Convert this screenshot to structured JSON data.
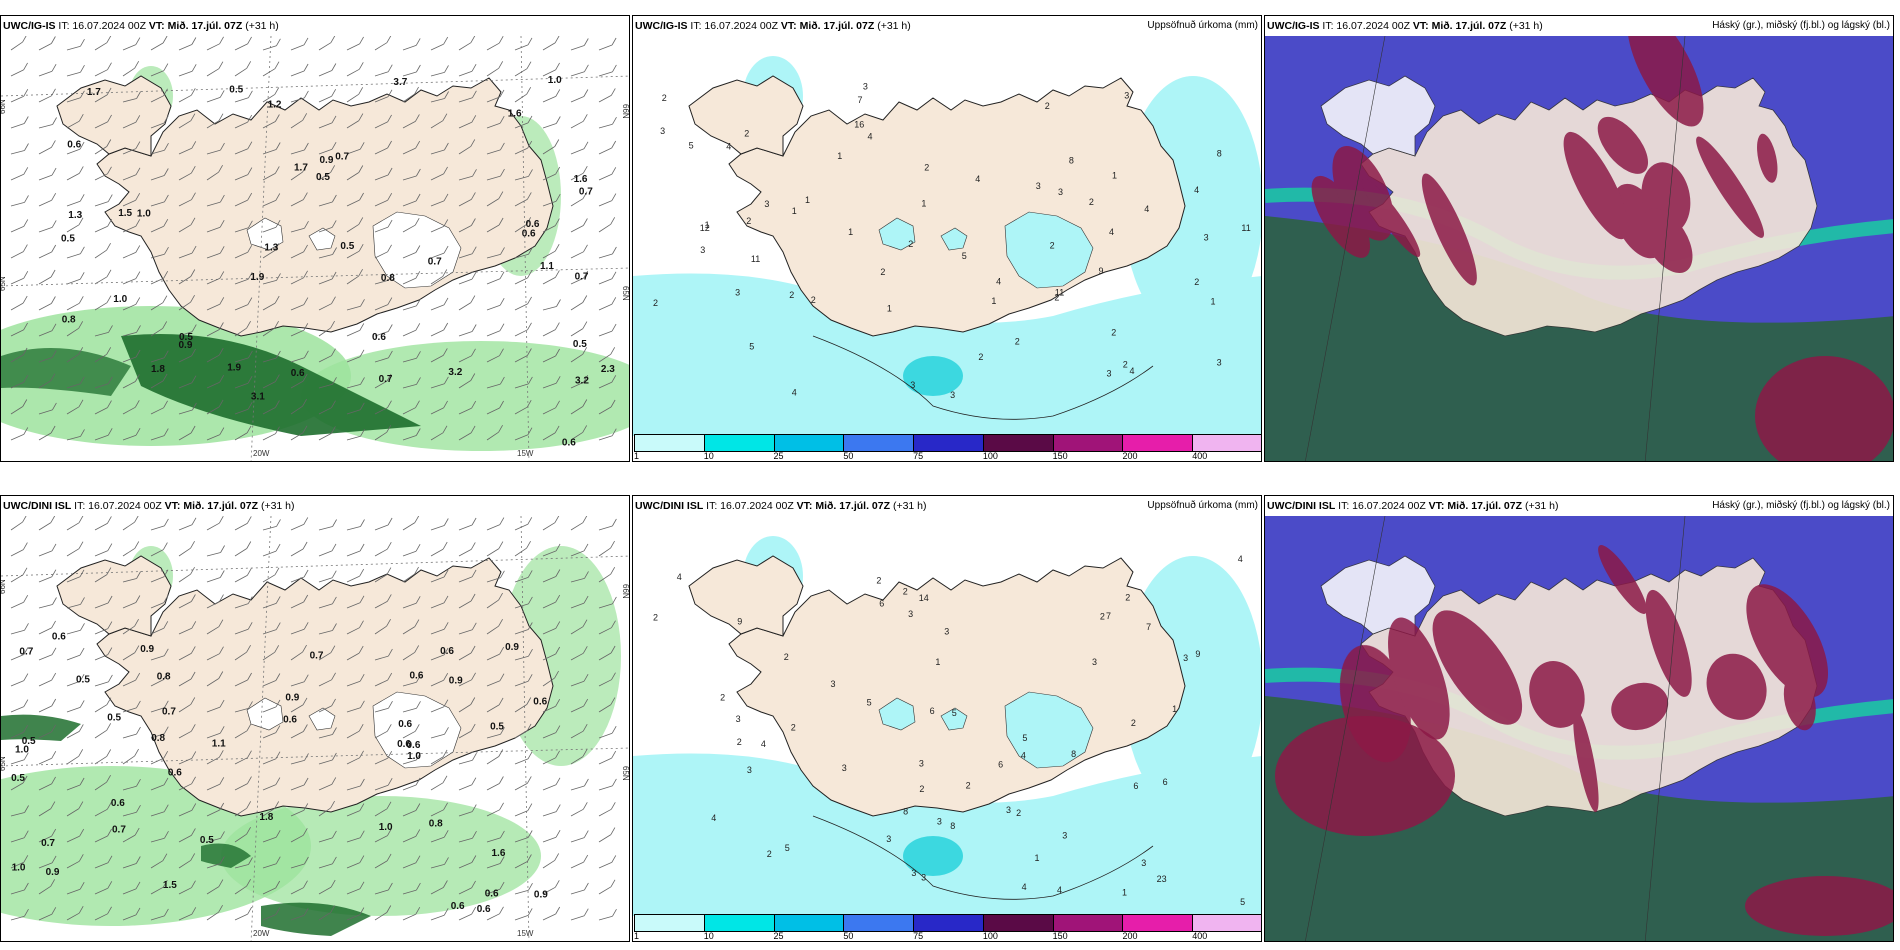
{
  "panels": [
    {
      "model": "UWC/IG-IS",
      "it": "IT: 16.07.2024 00Z",
      "vt_label": "VT:",
      "vt": "Mið. 17.júl. 07Z",
      "lead": "(+31 h)",
      "right": ""
    },
    {
      "model": "UWC/IG-IS",
      "it": "IT: 16.07.2024 00Z",
      "vt_label": "VT:",
      "vt": "Mið. 17.júl. 07Z",
      "lead": "(+31 h)",
      "right": "Uppsöfnuð úrkoma (mm)"
    },
    {
      "model": "UWC/IG-IS",
      "it": "IT: 16.07.2024 00Z",
      "vt_label": "VT:",
      "vt": "Mið. 17.júl. 07Z",
      "lead": "(+31 h)",
      "right": "Háský (gr.), miðský (fj.bl.) og lágský (bl.)"
    },
    {
      "model": "UWC/DINI ISL",
      "it": "IT: 16.07.2024 00Z",
      "vt_label": "VT:",
      "vt": "Mið. 17.júl. 07Z",
      "lead": "(+31 h)",
      "right": ""
    },
    {
      "model": "UWC/DINI ISL",
      "it": "IT: 16.07.2024 00Z",
      "vt_label": "VT:",
      "vt": "Mið. 17.júl. 07Z",
      "lead": "(+31 h)",
      "right": "Uppsöfnuð úrkoma (mm)"
    },
    {
      "model": "UWC/DINI ISL",
      "it": "IT: 16.07.2024 00Z",
      "vt_label": "VT:",
      "vt": "Mið. 17.júl. 07Z",
      "lead": "(+31 h)",
      "right": "Háský (gr.), miðský (fj.bl.) og lágský (bl.)"
    }
  ],
  "graticule": {
    "lat_66": "66N",
    "lat_65": "65N",
    "lon_20": "20W",
    "lon_15": "15W"
  },
  "colorbar": {
    "ticks": [
      "1",
      "10",
      "25",
      "50",
      "75",
      "100",
      "150",
      "200",
      "400"
    ],
    "colors": [
      "#c9fafa",
      "#00e6e6",
      "#00bfe6",
      "#3c78f0",
      "#2828c8",
      "#5a0a46",
      "#a01478",
      "#e61eaa",
      "#f0b4f0"
    ]
  },
  "colors": {
    "land": "#f6e8d9",
    "wind_green": "#9ee39e",
    "dark_green": "#1e6e2e",
    "precip": "#aef5f7",
    "high": "#4b4bc8",
    "mid": "#8c1946",
    "low": "#2f5f4f",
    "cloud_teal": "#17d4a0"
  },
  "precip_labels_top": [
    "0.5",
    "0.5",
    "0.6",
    "0.5",
    "0.5",
    "0.5",
    "1.0",
    "0.7",
    "1.2",
    "0.9",
    "0.8",
    "0.9",
    "1.9",
    "0.6",
    "0.6",
    "1.3",
    "1.1",
    "1.0",
    "0.7",
    "1.0",
    "3.2",
    "1.6",
    "1.8",
    "0.5",
    "2.3",
    "1.7",
    "3.7",
    "3.2",
    "3.1",
    "0.8",
    "0.7",
    "0.7",
    "0.6",
    "0.6",
    "0.6",
    "0.7",
    "1.7",
    "1.6",
    "1.9",
    "1.3",
    "1.5"
  ],
  "precip_labels_bottom": [
    "0.5",
    "0.5",
    "0.5",
    "0.6",
    "1.6",
    "1.5",
    "0.8",
    "0.7",
    "0.6",
    "0.7",
    "0.9",
    "0.7",
    "0.6",
    "1.0",
    "0.5",
    "0.6",
    "0.9",
    "0.6",
    "0.5",
    "0.6",
    "1.0",
    "0.6",
    "1.1",
    "1.0",
    "0.5",
    "0.7",
    "0.9",
    "0.9",
    "0.9",
    "0.8",
    "0.6",
    "0.6",
    "0.6",
    "0.7",
    "1.0",
    "0.6",
    "0.8",
    "0.9",
    "0.6",
    "1.8",
    "0.6"
  ],
  "accum_labels_top": [
    "2",
    "1",
    "2",
    "1",
    "1",
    "2",
    "2",
    "2",
    "3",
    "4",
    "1",
    "1",
    "2",
    "2",
    "3",
    "2",
    "1",
    "2",
    "5",
    "3",
    "4",
    "2",
    "1",
    "2",
    "4",
    "4",
    "3",
    "2",
    "2",
    "4",
    "5",
    "4",
    "3",
    "1",
    "2",
    "3",
    "2",
    "3",
    "8",
    "4",
    "3",
    "12",
    "16",
    "11",
    "11",
    "11",
    "9",
    "8",
    "5",
    "7",
    "3",
    "3",
    "3",
    "3",
    "2",
    "2",
    "4",
    "4",
    "3",
    "1",
    "1",
    "2"
  ],
  "accum_labels_bottom": [
    "2",
    "2",
    "1",
    "2",
    "2",
    "2",
    "1",
    "3",
    "4",
    "3",
    "2",
    "3",
    "2",
    "3",
    "3",
    "2",
    "5",
    "4",
    "3",
    "9",
    "5",
    "8",
    "6",
    "4",
    "3",
    "3",
    "3",
    "2",
    "2",
    "4",
    "2",
    "1",
    "1",
    "3",
    "2",
    "5",
    "3",
    "7",
    "6",
    "23",
    "14",
    "9",
    "6",
    "5",
    "5",
    "4",
    "3",
    "3",
    "8",
    "8",
    "7",
    "6",
    "6",
    "2",
    "2",
    "3",
    "4",
    "4",
    "3",
    "3"
  ]
}
